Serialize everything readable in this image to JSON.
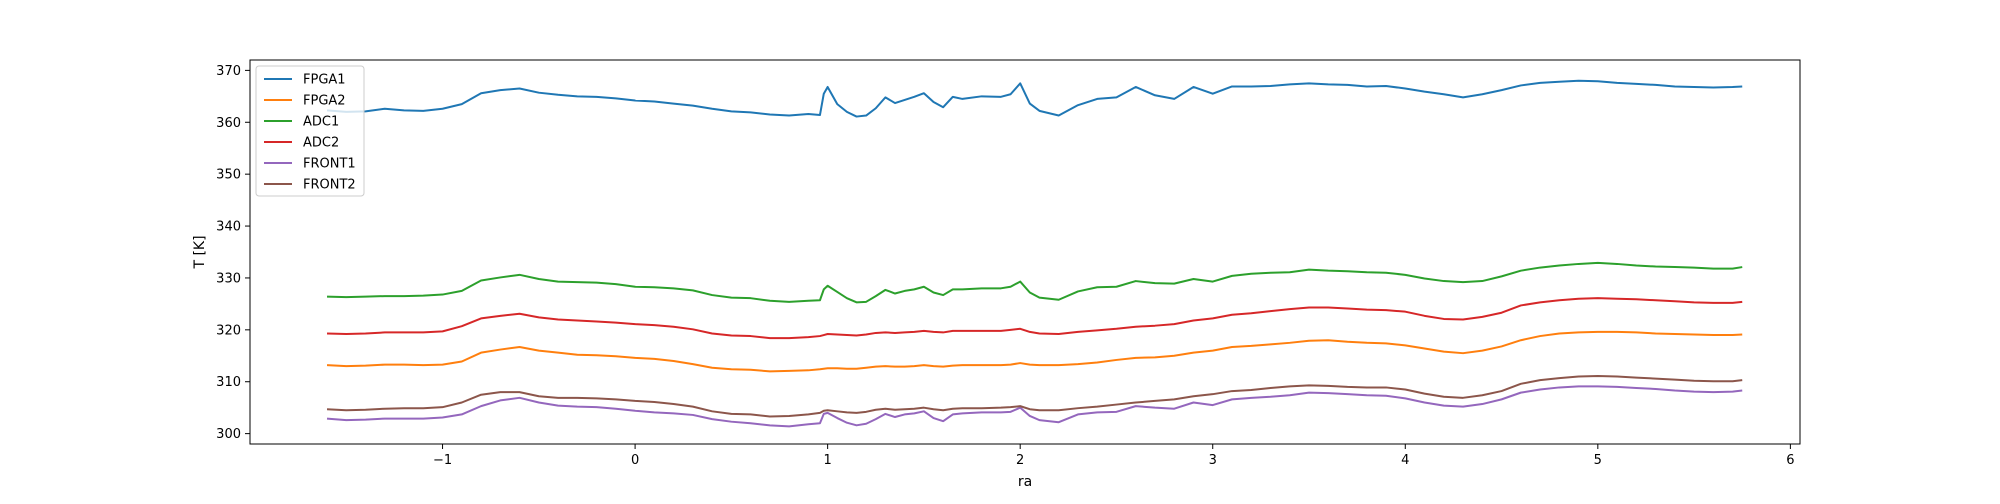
{
  "chart_data": {
    "type": "line",
    "title": "",
    "xlabel": "ra",
    "ylabel": "T [K]",
    "xlim": [
      -2.0,
      6.05
    ],
    "ylim": [
      298.0,
      372.0
    ],
    "xticks": [
      -1,
      0,
      1,
      2,
      3,
      4,
      5,
      6
    ],
    "yticks": [
      300,
      310,
      320,
      330,
      340,
      350,
      360,
      370
    ],
    "grid": false,
    "legend_position": "top-left",
    "x": [
      -1.6,
      -1.5,
      -1.4,
      -1.3,
      -1.2,
      -1.1,
      -1.0,
      -0.9,
      -0.8,
      -0.7,
      -0.6,
      -0.5,
      -0.4,
      -0.3,
      -0.2,
      -0.1,
      0.0,
      0.1,
      0.2,
      0.3,
      0.4,
      0.5,
      0.6,
      0.7,
      0.8,
      0.9,
      0.96,
      0.98,
      1.0,
      1.05,
      1.1,
      1.15,
      1.2,
      1.25,
      1.3,
      1.35,
      1.4,
      1.45,
      1.5,
      1.55,
      1.6,
      1.65,
      1.7,
      1.8,
      1.9,
      1.95,
      2.0,
      2.05,
      2.1,
      2.2,
      2.3,
      2.4,
      2.5,
      2.6,
      2.7,
      2.8,
      2.9,
      3.0,
      3.1,
      3.2,
      3.3,
      3.4,
      3.5,
      3.6,
      3.7,
      3.8,
      3.9,
      4.0,
      4.1,
      4.2,
      4.3,
      4.4,
      4.5,
      4.6,
      4.7,
      4.8,
      4.9,
      5.0,
      5.1,
      5.2,
      5.3,
      5.4,
      5.5,
      5.6,
      5.7,
      5.75
    ],
    "series": [
      {
        "name": "FPGA1",
        "color": "#1f77b4",
        "values": [
          362.3,
          362.0,
          362.1,
          362.6,
          362.3,
          362.2,
          362.6,
          363.5,
          365.6,
          366.2,
          366.5,
          365.7,
          365.3,
          365.0,
          364.9,
          364.6,
          364.2,
          364.0,
          363.6,
          363.2,
          362.6,
          362.1,
          361.9,
          361.5,
          361.3,
          361.6,
          361.4,
          365.5,
          366.8,
          363.5,
          362.0,
          361.1,
          361.3,
          362.7,
          364.8,
          363.7,
          364.3,
          364.9,
          365.6,
          363.9,
          362.9,
          364.9,
          364.5,
          365.0,
          364.9,
          365.4,
          367.5,
          363.6,
          362.2,
          361.3,
          363.3,
          364.5,
          364.8,
          366.8,
          365.2,
          364.5,
          366.8,
          365.5,
          366.9,
          366.9,
          367.0,
          367.3,
          367.5,
          367.3,
          367.2,
          366.9,
          367.0,
          366.5,
          365.9,
          365.4,
          364.8,
          365.4,
          366.2,
          367.1,
          367.6,
          367.8,
          368.0,
          367.9,
          367.6,
          367.4,
          367.2,
          366.9,
          366.8,
          366.7,
          366.8,
          366.9
        ]
      },
      {
        "name": "FPGA2",
        "color": "#ff7f0e",
        "values": [
          313.2,
          313.0,
          313.1,
          313.3,
          313.3,
          313.2,
          313.3,
          313.9,
          315.6,
          316.2,
          316.7,
          316.0,
          315.6,
          315.2,
          315.1,
          314.9,
          314.6,
          314.4,
          314.0,
          313.4,
          312.7,
          312.4,
          312.3,
          312.0,
          312.1,
          312.2,
          312.4,
          312.5,
          312.6,
          312.6,
          312.5,
          312.5,
          312.7,
          312.9,
          313.0,
          312.9,
          312.9,
          313.0,
          313.2,
          313.0,
          312.9,
          313.1,
          313.2,
          313.2,
          313.2,
          313.3,
          313.6,
          313.3,
          313.2,
          313.2,
          313.4,
          313.7,
          314.2,
          314.6,
          314.7,
          315.0,
          315.6,
          316.0,
          316.7,
          316.9,
          317.2,
          317.5,
          317.9,
          318.0,
          317.7,
          317.5,
          317.4,
          317.0,
          316.4,
          315.8,
          315.5,
          316.0,
          316.8,
          318.0,
          318.8,
          319.3,
          319.5,
          319.6,
          319.6,
          319.5,
          319.3,
          319.2,
          319.1,
          319.0,
          319.0,
          319.1
        ]
      },
      {
        "name": "ADC1",
        "color": "#2ca02c",
        "values": [
          326.4,
          326.3,
          326.4,
          326.5,
          326.5,
          326.6,
          326.8,
          327.5,
          329.5,
          330.1,
          330.6,
          329.8,
          329.3,
          329.2,
          329.1,
          328.8,
          328.3,
          328.2,
          328.0,
          327.6,
          326.7,
          326.2,
          326.1,
          325.6,
          325.4,
          325.6,
          325.7,
          327.8,
          328.5,
          327.3,
          326.1,
          325.3,
          325.4,
          326.5,
          327.7,
          327.0,
          327.5,
          327.8,
          328.3,
          327.2,
          326.7,
          327.8,
          327.8,
          328.0,
          328.0,
          328.3,
          329.3,
          327.2,
          326.2,
          325.8,
          327.4,
          328.2,
          328.3,
          329.4,
          329.0,
          328.9,
          329.8,
          329.3,
          330.4,
          330.8,
          331.0,
          331.1,
          331.6,
          331.4,
          331.3,
          331.1,
          331.0,
          330.6,
          329.9,
          329.4,
          329.2,
          329.4,
          330.3,
          331.4,
          332.0,
          332.4,
          332.7,
          332.9,
          332.7,
          332.4,
          332.2,
          332.1,
          332.0,
          331.8,
          331.8,
          332.1
        ]
      },
      {
        "name": "ADC2",
        "color": "#d62728",
        "values": [
          319.3,
          319.2,
          319.3,
          319.5,
          319.5,
          319.5,
          319.7,
          320.7,
          322.2,
          322.7,
          323.1,
          322.4,
          322.0,
          321.8,
          321.6,
          321.4,
          321.1,
          320.9,
          320.6,
          320.1,
          319.3,
          318.9,
          318.8,
          318.4,
          318.4,
          318.6,
          318.8,
          319.0,
          319.2,
          319.1,
          319.0,
          318.9,
          319.1,
          319.4,
          319.5,
          319.4,
          319.5,
          319.6,
          319.8,
          319.6,
          319.5,
          319.8,
          319.8,
          319.8,
          319.8,
          320.0,
          320.2,
          319.6,
          319.3,
          319.2,
          319.6,
          319.9,
          320.2,
          320.6,
          320.8,
          321.1,
          321.8,
          322.2,
          322.9,
          323.2,
          323.6,
          324.0,
          324.3,
          324.3,
          324.1,
          323.9,
          323.8,
          323.5,
          322.7,
          322.1,
          322.0,
          322.5,
          323.3,
          324.7,
          325.3,
          325.7,
          326.0,
          326.1,
          326.0,
          325.9,
          325.7,
          325.5,
          325.3,
          325.2,
          325.2,
          325.4
        ]
      },
      {
        "name": "FRONT1",
        "color": "#9467bd",
        "values": [
          302.9,
          302.6,
          302.7,
          302.9,
          302.9,
          302.9,
          303.1,
          303.7,
          305.3,
          306.4,
          306.9,
          306.0,
          305.4,
          305.2,
          305.1,
          304.8,
          304.4,
          304.1,
          303.9,
          303.6,
          302.8,
          302.3,
          302.0,
          301.6,
          301.4,
          301.8,
          302.0,
          303.8,
          304.0,
          303.0,
          302.1,
          301.6,
          301.9,
          302.8,
          303.8,
          303.2,
          303.7,
          303.9,
          304.3,
          303.0,
          302.4,
          303.7,
          303.9,
          304.1,
          304.1,
          304.2,
          305.0,
          303.4,
          302.6,
          302.2,
          303.7,
          304.1,
          304.2,
          305.3,
          305.0,
          304.8,
          306.0,
          305.5,
          306.6,
          306.9,
          307.1,
          307.4,
          307.9,
          307.8,
          307.6,
          307.4,
          307.3,
          306.8,
          306.0,
          305.4,
          305.2,
          305.7,
          306.6,
          307.9,
          308.5,
          308.9,
          309.1,
          309.1,
          309.0,
          308.8,
          308.6,
          308.3,
          308.1,
          308.0,
          308.1,
          308.3
        ]
      },
      {
        "name": "FRONT2",
        "color": "#8c564b",
        "values": [
          304.7,
          304.5,
          304.6,
          304.8,
          304.9,
          304.9,
          305.1,
          306.0,
          307.5,
          308.0,
          308.0,
          307.2,
          306.9,
          306.9,
          306.8,
          306.6,
          306.3,
          306.1,
          305.7,
          305.2,
          304.3,
          303.8,
          303.7,
          303.3,
          303.4,
          303.7,
          304.0,
          304.4,
          304.5,
          304.3,
          304.1,
          304.0,
          304.2,
          304.6,
          304.8,
          304.6,
          304.7,
          304.8,
          305.0,
          304.7,
          304.5,
          304.8,
          304.9,
          304.9,
          305.0,
          305.1,
          305.3,
          304.7,
          304.5,
          304.5,
          304.9,
          305.2,
          305.6,
          306.0,
          306.3,
          306.6,
          307.2,
          307.6,
          308.2,
          308.4,
          308.8,
          309.1,
          309.3,
          309.2,
          309.0,
          308.9,
          308.9,
          308.5,
          307.7,
          307.1,
          306.9,
          307.4,
          308.2,
          309.6,
          310.3,
          310.7,
          311.0,
          311.1,
          311.0,
          310.8,
          310.6,
          310.4,
          310.2,
          310.1,
          310.1,
          310.3
        ]
      }
    ]
  }
}
